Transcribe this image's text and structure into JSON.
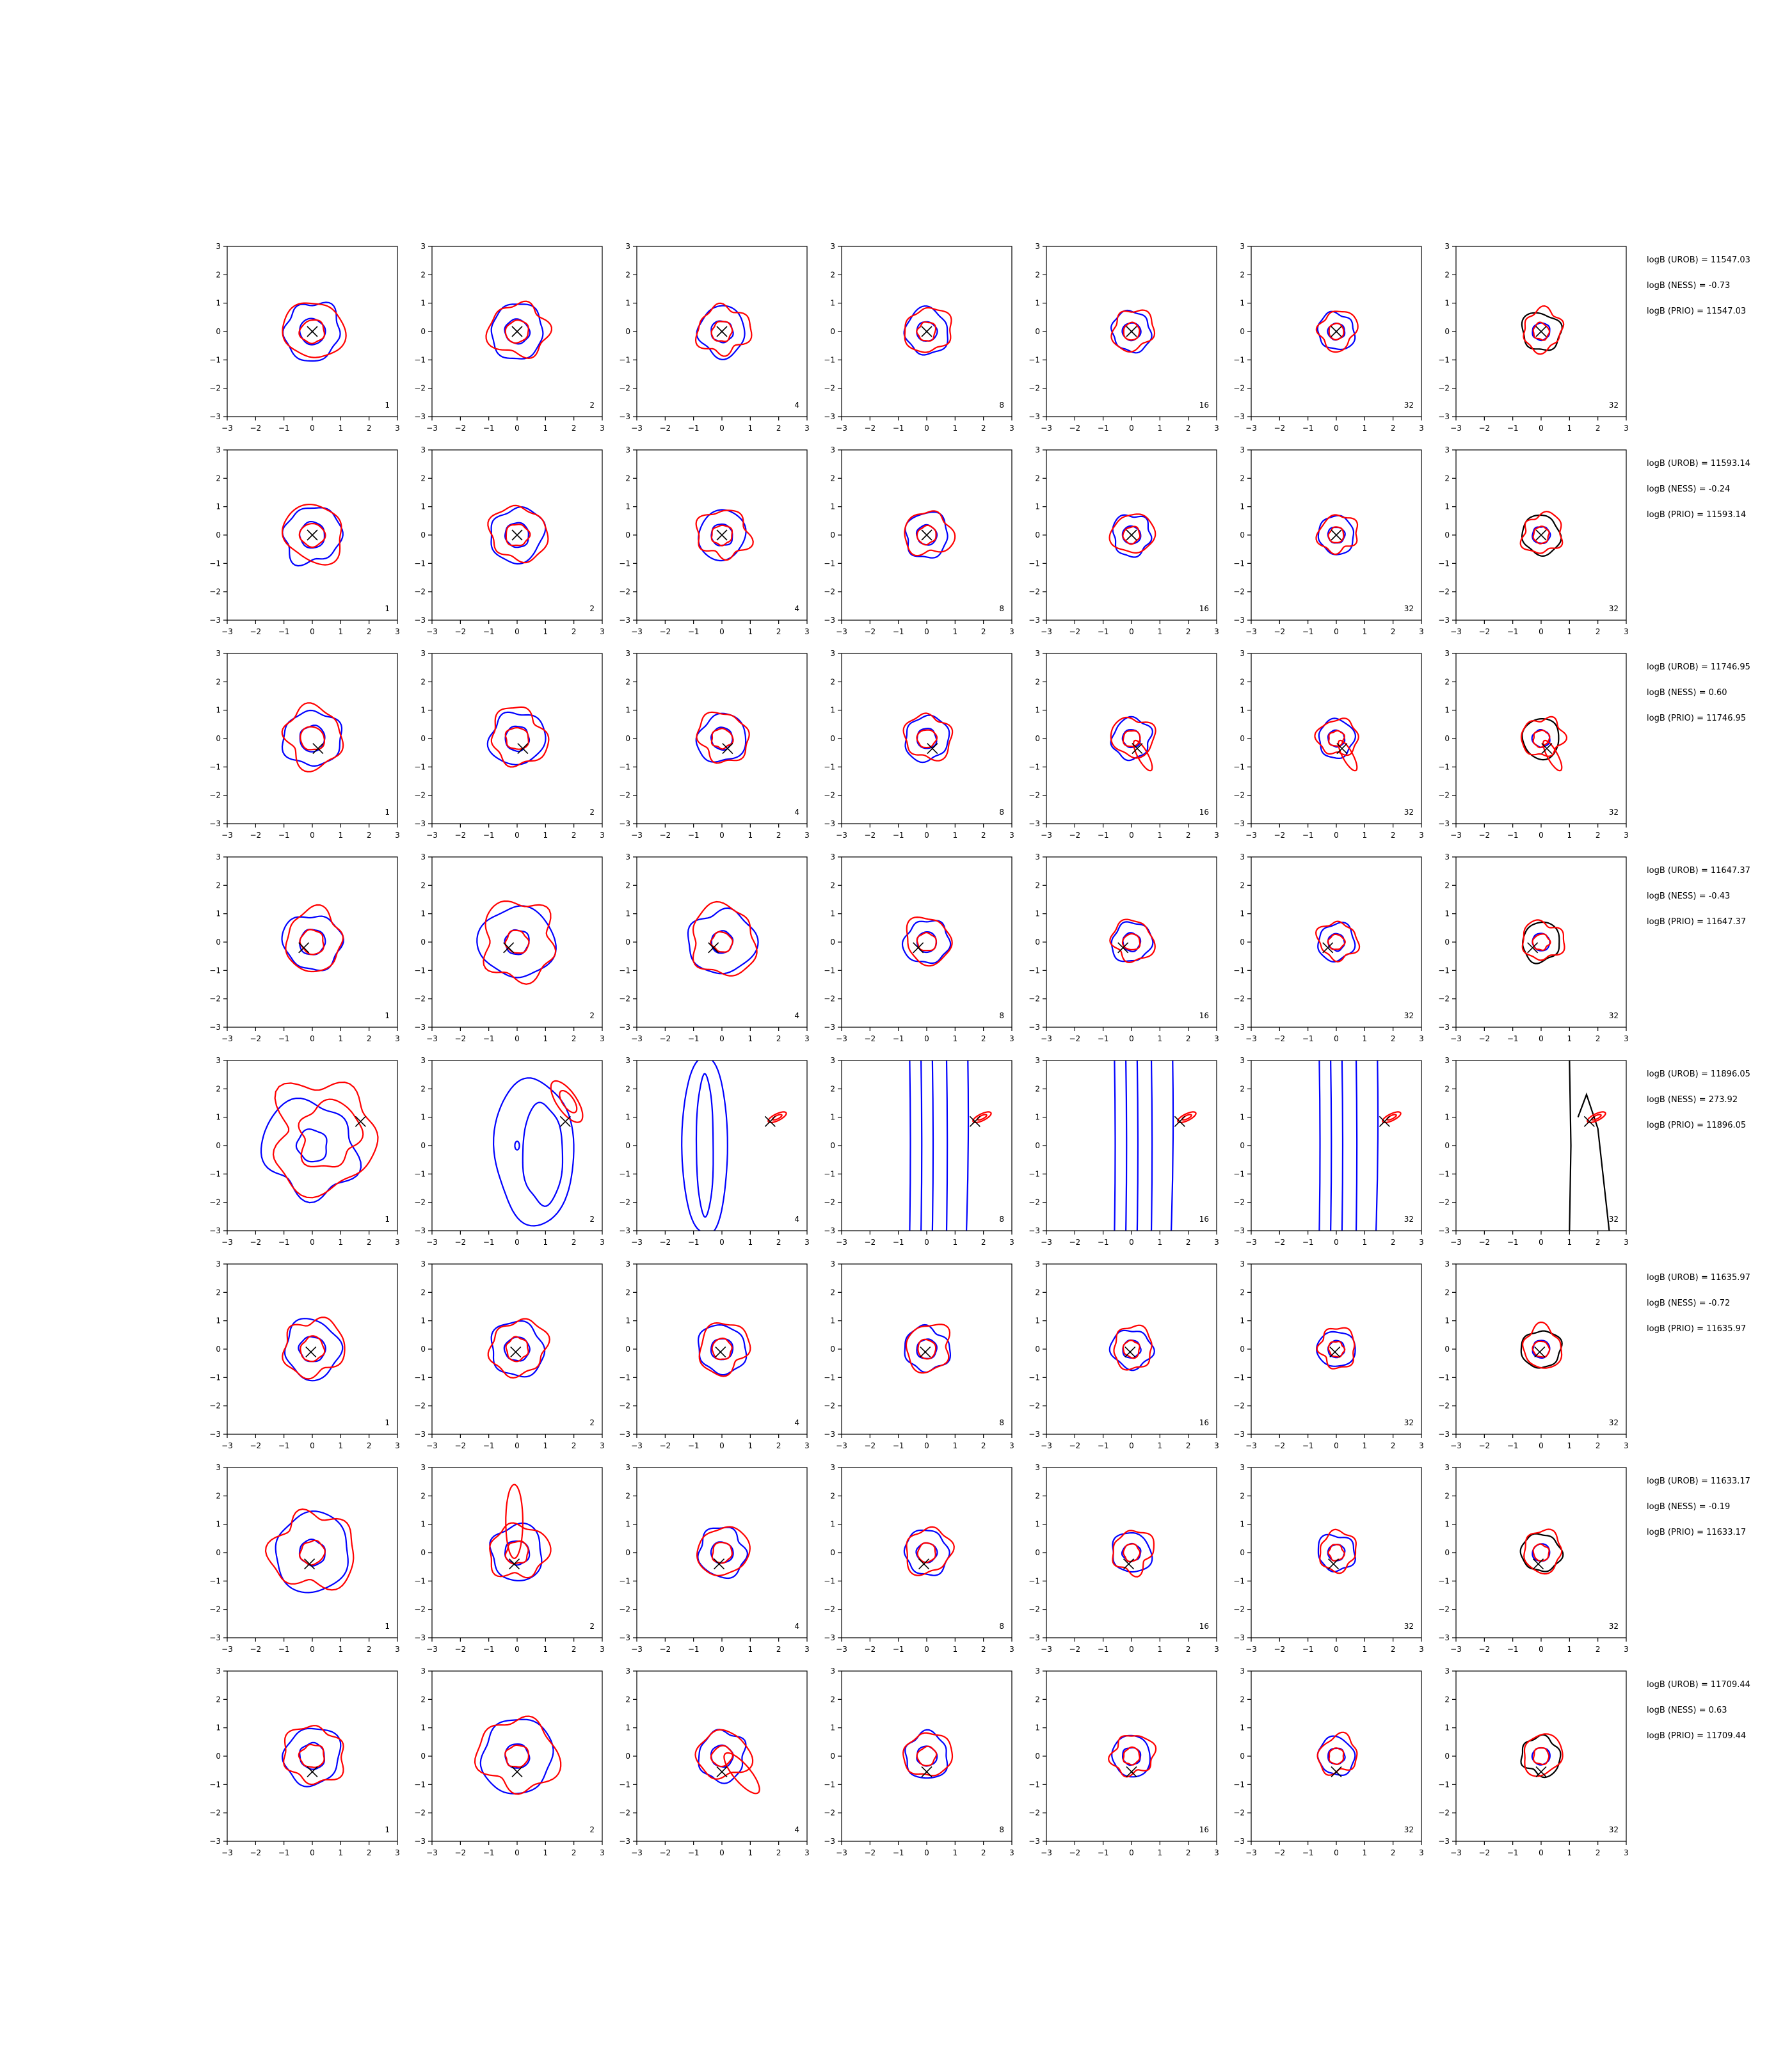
{
  "colors": {
    "blue": "#0000ff",
    "red": "#ff0000",
    "black": "#000000",
    "axis": "#000000"
  },
  "chart_data": {
    "type": "contour-grid",
    "xlim": [
      -3,
      3
    ],
    "ylim": [
      -3,
      3
    ],
    "xticks": [
      "−3",
      "−2",
      "−1",
      "0",
      "1",
      "2",
      "3"
    ],
    "yticks": [
      "3",
      "2",
      "1",
      "0",
      "−1",
      "−2",
      "−3"
    ],
    "column_labels": [
      "1",
      "2",
      "4",
      "8",
      "16",
      "32",
      "32"
    ],
    "rows": [
      {
        "marker": [
          0.0,
          0.0
        ],
        "annotations": [
          "logB (UROB) = 11547.03",
          "logB (NESS) = -0.73",
          "logB (PRIO) = 11547.03"
        ]
      },
      {
        "marker": [
          0.0,
          0.0
        ],
        "annotations": [
          "logB (UROB) = 11593.14",
          "logB (NESS) = -0.24",
          "logB (PRIO) = 11593.14"
        ]
      },
      {
        "marker": [
          0.2,
          -0.35
        ],
        "annotations": [
          "logB (UROB) = 11746.95",
          "logB (NESS) = 0.60",
          "logB (PRIO) = 11746.95"
        ]
      },
      {
        "marker": [
          -0.3,
          -0.2
        ],
        "annotations": [
          "logB (UROB) = 11647.37",
          "logB (NESS) = -0.43",
          "logB (PRIO) = 11647.37"
        ]
      },
      {
        "marker": [
          1.7,
          0.85
        ],
        "annotations": [
          "logB (UROB) = 11896.05",
          "logB (NESS) = 273.92",
          "logB (PRIO) = 11896.05"
        ]
      },
      {
        "marker": [
          -0.05,
          -0.1
        ],
        "annotations": [
          "logB (UROB) = 11635.97",
          "logB (NESS) = -0.72",
          "logB (PRIO) = 11635.97"
        ]
      },
      {
        "marker": [
          -0.1,
          -0.4
        ],
        "annotations": [
          "logB (UROB) = 11633.17",
          "logB (NESS) = -0.19",
          "logB (PRIO) = 11633.17"
        ]
      },
      {
        "marker": [
          0.0,
          -0.55
        ],
        "annotations": [
          "logB (UROB) = 11709.44",
          "logB (NESS) = 0.63",
          "logB (PRIO) = 11709.44"
        ]
      }
    ]
  }
}
